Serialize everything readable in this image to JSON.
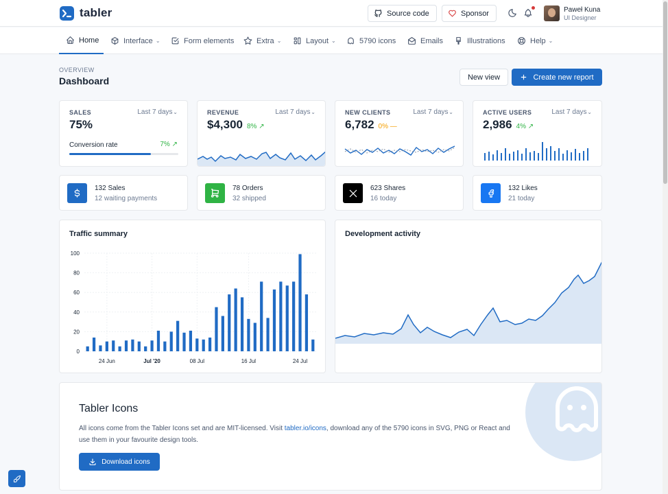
{
  "header": {
    "brand": "tabler",
    "source_code_label": "Source code",
    "sponsor_label": "Sponsor",
    "user_name": "Paweł Kuna",
    "user_role": "UI Designer"
  },
  "nav": {
    "items": [
      {
        "label": "Home",
        "icon": "home-icon",
        "active": true,
        "caret": false
      },
      {
        "label": "Interface",
        "icon": "package-icon",
        "caret": true
      },
      {
        "label": "Form elements",
        "icon": "checkbox-icon",
        "caret": false
      },
      {
        "label": "Extra",
        "icon": "star-icon",
        "caret": true
      },
      {
        "label": "Layout",
        "icon": "layout-icon",
        "caret": true
      },
      {
        "label": "5790 icons",
        "icon": "ghost-icon",
        "caret": false
      },
      {
        "label": "Emails",
        "icon": "mail-icon",
        "caret": false
      },
      {
        "label": "Illustrations",
        "icon": "brush-icon",
        "caret": false
      },
      {
        "label": "Help",
        "icon": "lifebuoy-icon",
        "caret": true
      }
    ]
  },
  "page": {
    "pretitle": "OVERVIEW",
    "title": "Dashboard",
    "new_view_label": "New view",
    "create_report_label": "Create new report"
  },
  "stats": {
    "sales": {
      "label": "SALES",
      "range": "Last 7 days",
      "value": "75%",
      "conversion_label": "Conversion rate",
      "conversion_value": "7%",
      "progress": 0.75
    },
    "revenue": {
      "label": "REVENUE",
      "range": "Last 7 days",
      "value": "$4,300",
      "delta": "8%"
    },
    "clients": {
      "label": "NEW CLIENTS",
      "range": "Last 7 days",
      "value": "6,782",
      "delta": "0%"
    },
    "users": {
      "label": "ACTIVE USERS",
      "range": "Last 7 days",
      "value": "2,986",
      "delta": "4%"
    }
  },
  "mini_cards": [
    {
      "title": "132 Sales",
      "subtitle": "12 waiting payments",
      "icon": "currency-dollar-icon",
      "color": "#206bc4"
    },
    {
      "title": "78 Orders",
      "subtitle": "32 shipped",
      "icon": "shopping-cart-icon",
      "color": "#2fb344"
    },
    {
      "title": "623 Shares",
      "subtitle": "16 today",
      "icon": "x-logo-icon",
      "color": "#000000"
    },
    {
      "title": "132 Likes",
      "subtitle": "21 today",
      "icon": "facebook-icon",
      "color": "#1877f2"
    }
  ],
  "traffic": {
    "title": "Traffic summary"
  },
  "activity": {
    "title": "Development activity"
  },
  "chart_data": {
    "type": "bar",
    "title": "Traffic summary",
    "ylim": [
      0,
      100
    ],
    "yticks": [
      0,
      20,
      40,
      60,
      80,
      100
    ],
    "xticks": [
      "24 Jun",
      "Jul '20",
      "08 Jul",
      "16 Jul",
      "24 Jul"
    ],
    "values": [
      5,
      14,
      6,
      10,
      11,
      5,
      11,
      12,
      10,
      5,
      11,
      21,
      10,
      20,
      31,
      19,
      21,
      13,
      12,
      14,
      45,
      36,
      58,
      64,
      55,
      33,
      29,
      71,
      34,
      63,
      71,
      67,
      71,
      99,
      58,
      12
    ],
    "color": "#206bc4",
    "grid": true
  },
  "tabler_icons": {
    "title": "Tabler Icons",
    "text_before": "All icons come from the Tabler Icons set and are MIT-licensed. Visit ",
    "link": "tabler.io/icons",
    "text_after": ", download any of the 5790 icons in SVG, PNG or React and use them in your favourite design tools.",
    "button_label": "Download icons"
  },
  "colors": {
    "primary": "#206bc4",
    "success": "#2fb344",
    "warning": "#f59f00",
    "danger": "#d63939"
  }
}
